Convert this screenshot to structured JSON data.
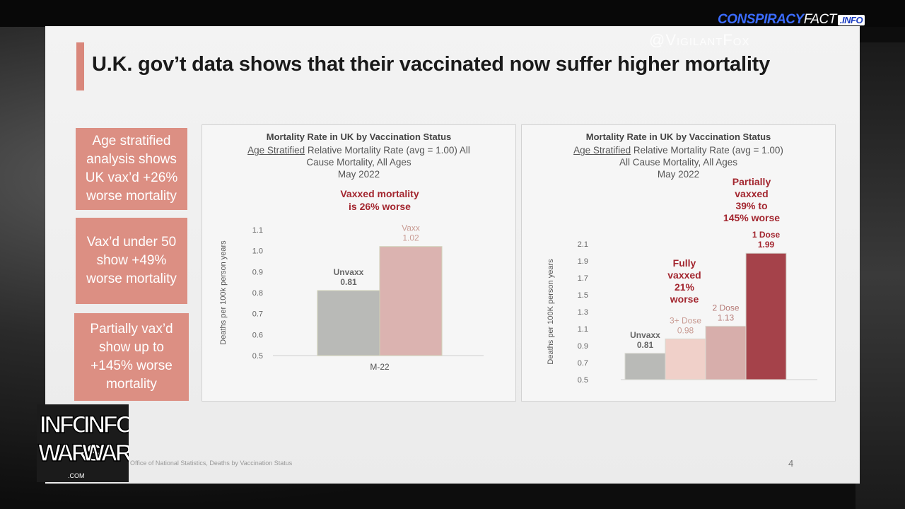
{
  "overlay": {
    "brand_left": "CONSPIRACY",
    "brand_mid": "FACT",
    "brand_right": ".INFO",
    "handle": "@VigilantFox",
    "logo_text": "INFO WARS"
  },
  "slide": {
    "title": "U.K. gov’t data shows that their vaccinated now suffer higher mortality",
    "boxes": [
      {
        "lines": [
          "Age stratified",
          "analysis shows",
          "UK vax’d +26%",
          "worse mortality"
        ]
      },
      {
        "lines": [
          "Vax’d under 50",
          "show +49%",
          "worse mortality"
        ]
      },
      {
        "lines": [
          "Partially vax’d",
          "show up to",
          "+145% worse",
          "mortality"
        ]
      }
    ],
    "source": "Office of National Statistics, Deaths by Vaccination Status",
    "page_number": "4",
    "colors": {
      "accent": "#dc8f83",
      "annotation": "#a3262f"
    }
  },
  "chart_data": [
    {
      "type": "bar",
      "title": "Mortality Rate in UK by Vaccination Status",
      "subtitle_underlined": "Age Stratified",
      "subtitle_lines": [
        " Relative Mortality Rate (avg = 1.00) All",
        "Cause Mortality, All Ages",
        "May 2022"
      ],
      "annotation": [
        "Vaxxed  mortality",
        "is 26% worse"
      ],
      "ylabel": "Deaths per 100k person years",
      "ylim": [
        0.5,
        1.1
      ],
      "yticks": [
        "1.1",
        "1.0",
        "0.9",
        "0.8",
        "0.7",
        "0.6",
        "0.5"
      ],
      "category_label": "M-22",
      "bars": [
        {
          "name": "Unvaxx",
          "label": "0.81",
          "value": 0.81,
          "color": "#b9bab7"
        },
        {
          "name": "Vaxx",
          "label": "1.02",
          "value": 1.02,
          "color": "#dbb3b0"
        }
      ]
    },
    {
      "type": "bar",
      "title": "Mortality Rate in UK by Vaccination Status",
      "subtitle_underlined": "Age Stratified",
      "subtitle_lines": [
        " Relative Mortality Rate (avg = 1.00)",
        "All Cause Mortality, All Ages",
        "May 2022"
      ],
      "annotations": [
        [
          "Partially",
          "vaxxed",
          "39% to",
          "145% worse"
        ],
        [
          "Fully",
          "vaxxed",
          "21%",
          "worse"
        ]
      ],
      "ylabel": "Deaths per 100K person years",
      "ylim": [
        0.5,
        2.1
      ],
      "yticks": [
        "2.1",
        "1.9",
        "1.7",
        "1.5",
        "1.3",
        "1.1",
        "0.9",
        "0.7",
        "0.5"
      ],
      "bars": [
        {
          "name": "Unvaxx",
          "label": "0.81",
          "value": 0.81,
          "color": "#b9bab7",
          "text_color": "#666666"
        },
        {
          "name": "3+ Dose",
          "label": "0.98",
          "value": 0.98,
          "color": "#f0d0c9",
          "text_color": "#c99c94"
        },
        {
          "name": "2 Dose",
          "label": "1.13",
          "value": 1.13,
          "color": "#d7aeab",
          "text_color": "#b57a76"
        },
        {
          "name": "1 Dose",
          "label": "1.99",
          "value": 1.99,
          "color": "#a5424a",
          "text_color": "#a3262f"
        }
      ]
    }
  ]
}
